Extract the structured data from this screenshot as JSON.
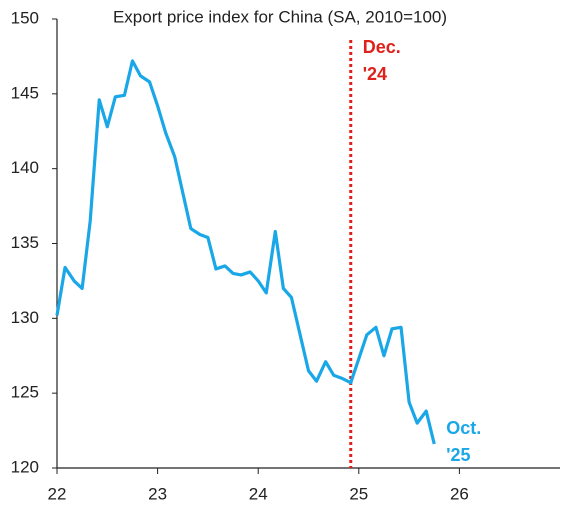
{
  "chart_data": {
    "type": "line",
    "title": "Export price index for China (SA, 2010=100)",
    "x": [
      22.0,
      22.08,
      22.17,
      22.25,
      22.33,
      22.42,
      22.5,
      22.58,
      22.67,
      22.75,
      22.83,
      22.92,
      23.0,
      23.08,
      23.17,
      23.25,
      23.33,
      23.42,
      23.5,
      23.58,
      23.67,
      23.75,
      23.83,
      23.92,
      24.0,
      24.08,
      24.17,
      24.25,
      24.33,
      24.42,
      24.5,
      24.58,
      24.67,
      24.75,
      24.83,
      24.92,
      25.0,
      25.08,
      25.17,
      25.25,
      25.33,
      25.42,
      25.5,
      25.58,
      25.67,
      25.75
    ],
    "series": [
      {
        "name": "Export price index",
        "color": "#1aa7e8",
        "values": [
          130.2,
          133.4,
          132.5,
          132.0,
          136.5,
          144.6,
          142.8,
          144.8,
          144.9,
          147.2,
          146.2,
          145.8,
          144.2,
          142.4,
          140.8,
          138.4,
          136.0,
          135.6,
          135.4,
          133.3,
          133.5,
          133.0,
          132.9,
          133.1,
          132.5,
          131.7,
          135.8,
          132.0,
          131.4,
          128.8,
          126.5,
          125.8,
          127.1,
          126.2,
          126.0,
          125.7,
          127.3,
          128.9,
          129.4,
          127.5,
          129.3,
          129.4,
          124.4,
          123.0,
          123.8,
          121.6
        ]
      }
    ],
    "xlim": [
      22,
      27
    ],
    "xticks": [
      22,
      23,
      24,
      25,
      26
    ],
    "ylim": [
      120,
      150
    ],
    "yticks": [
      120,
      125,
      130,
      135,
      140,
      145,
      150
    ],
    "vline": {
      "x": 24.92,
      "color": "#e0201b"
    },
    "annotations": [
      {
        "lines": [
          "Dec.",
          "'24"
        ],
        "color": "#e0201b"
      },
      {
        "lines": [
          "Oct.",
          "'25"
        ],
        "color": "#1aa7e8"
      }
    ]
  }
}
